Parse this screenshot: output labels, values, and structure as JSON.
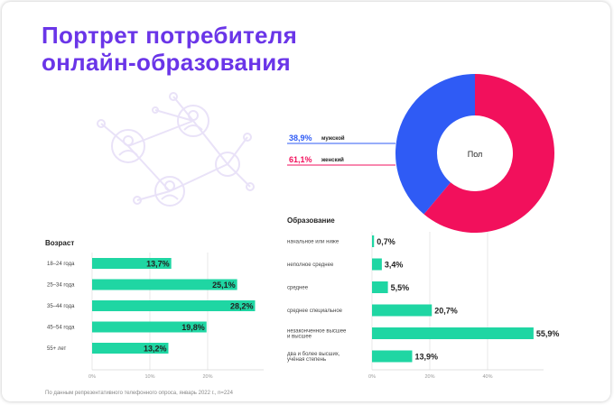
{
  "title": {
    "line1": "Портрет потребителя",
    "line2": "онлайн-образования"
  },
  "footnote": "По данным репрезентативного телефонного опроса, январь 2022 г., n=224",
  "colors": {
    "accent": "#6a35e8",
    "bar": "#1fd6a3",
    "male": "#2f5bf5",
    "female": "#f2105c",
    "decor": "#e9e2f8"
  },
  "chart_data": [
    {
      "type": "pie",
      "variant": "donut",
      "title": "Пол",
      "slices": [
        {
          "label": "мужской",
          "value": 38.9,
          "value_label": "38,9%",
          "color": "#2f5bf5"
        },
        {
          "label": "женский",
          "value": 61.1,
          "value_label": "61,1%",
          "color": "#f2105c"
        }
      ]
    },
    {
      "type": "bar",
      "orientation": "horizontal",
      "title": "Возраст",
      "categories": [
        "18–24 года",
        "25–34 года",
        "35–44 года",
        "45–54 года",
        "55+ лет"
      ],
      "values": [
        13.7,
        25.1,
        28.2,
        19.8,
        13.2
      ],
      "value_labels": [
        "13,7%",
        "25,1%",
        "28,2%",
        "19,8%",
        "13,2%"
      ],
      "xlim": [
        0,
        30
      ],
      "ticks": [
        0,
        10,
        20
      ],
      "tick_labels": [
        "0%",
        "10%",
        "20%"
      ]
    },
    {
      "type": "bar",
      "orientation": "horizontal",
      "title": "Образование",
      "categories": [
        "начальное или ниже",
        "неполное среднее",
        "среднее",
        "среднее специальное",
        "незаконченное высшее\nи высшее",
        "два и более высших,\nучёная степень"
      ],
      "values": [
        0.7,
        3.4,
        5.5,
        20.7,
        55.9,
        13.9
      ],
      "value_labels": [
        "0,7%",
        "3,4%",
        "5,5%",
        "20,7%",
        "55,9%",
        "13,9%"
      ],
      "xlim": [
        0,
        60
      ],
      "ticks": [
        0,
        20,
        40
      ],
      "tick_labels": [
        "0%",
        "20%",
        "40%"
      ]
    }
  ]
}
